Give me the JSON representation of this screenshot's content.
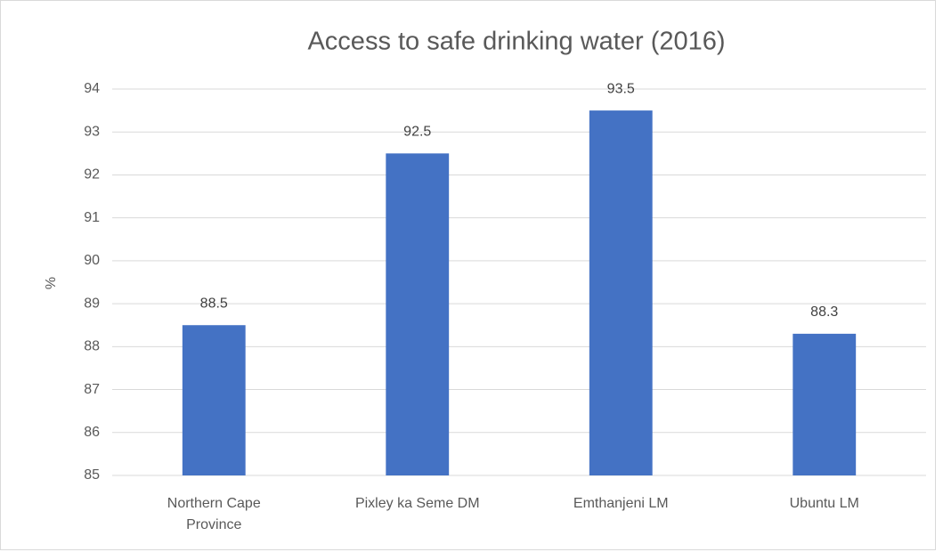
{
  "chart_data": {
    "type": "bar",
    "title": "Access to safe drinking water (2016)",
    "y_label": "%",
    "categories": [
      "Northern Cape Province",
      "Pixley ka Seme DM",
      "Emthanjeni LM",
      "Ubuntu LM"
    ],
    "values": [
      88.5,
      92.5,
      93.5,
      88.3
    ],
    "color": "#4472c4",
    "ylim": [
      85,
      94
    ],
    "yticks": [
      85,
      86,
      87,
      88,
      89,
      90,
      91,
      92,
      93,
      94
    ],
    "grid": true
  }
}
